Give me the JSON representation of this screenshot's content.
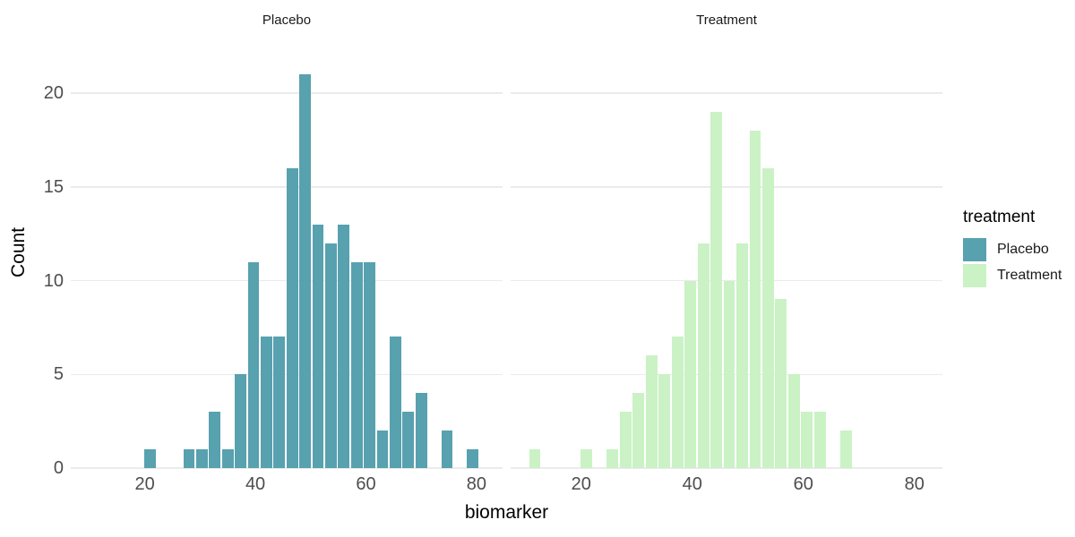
{
  "colors": {
    "background": "#ffffff",
    "grid": "#ebebeb",
    "tick_label": "#4d4d4d",
    "axis_title": "#000000",
    "strip_text": "#1a1a1a",
    "placebo_fill": "#58a1af",
    "treatment_fill": "#caf2c5"
  },
  "chart_data": {
    "type": "histogram",
    "faceted_by": "treatment",
    "binwidth": 2.3333,
    "xlabel": "biomarker",
    "ylabel": "Count",
    "x_ticks": [
      20,
      40,
      60,
      80
    ],
    "y_ticks": [
      0,
      5,
      10,
      15,
      20
    ],
    "xlim": [
      6.6,
      84.8
    ],
    "ylim": [
      0,
      22.9
    ],
    "grid": "horizontal-only",
    "legend": {
      "title": "treatment",
      "position": "right",
      "entries": [
        {
          "label": "Placebo",
          "color": "#58a1af"
        },
        {
          "label": "Treatment",
          "color": "#caf2c5"
        }
      ]
    },
    "facets": [
      {
        "label": "Placebo",
        "color": "#58a1af",
        "bins": [
          {
            "x": 19.83,
            "count": 1
          },
          {
            "x": 26.83,
            "count": 1
          },
          {
            "x": 29.17,
            "count": 1
          },
          {
            "x": 31.5,
            "count": 3
          },
          {
            "x": 33.83,
            "count": 1
          },
          {
            "x": 36.17,
            "count": 5
          },
          {
            "x": 38.5,
            "count": 11
          },
          {
            "x": 40.83,
            "count": 7
          },
          {
            "x": 43.17,
            "count": 7
          },
          {
            "x": 45.5,
            "count": 16
          },
          {
            "x": 47.83,
            "count": 21
          },
          {
            "x": 50.17,
            "count": 13
          },
          {
            "x": 52.5,
            "count": 12
          },
          {
            "x": 54.83,
            "count": 13
          },
          {
            "x": 57.17,
            "count": 11
          },
          {
            "x": 59.5,
            "count": 11
          },
          {
            "x": 61.83,
            "count": 2
          },
          {
            "x": 64.17,
            "count": 7
          },
          {
            "x": 66.5,
            "count": 3
          },
          {
            "x": 68.83,
            "count": 4
          },
          {
            "x": 73.5,
            "count": 2
          },
          {
            "x": 78.17,
            "count": 1
          }
        ]
      },
      {
        "label": "Treatment",
        "color": "#caf2c5",
        "bins": [
          {
            "x": 10.5,
            "count": 1
          },
          {
            "x": 19.83,
            "count": 1
          },
          {
            "x": 24.5,
            "count": 1
          },
          {
            "x": 26.83,
            "count": 3
          },
          {
            "x": 29.17,
            "count": 4
          },
          {
            "x": 31.5,
            "count": 6
          },
          {
            "x": 33.83,
            "count": 5
          },
          {
            "x": 36.17,
            "count": 7
          },
          {
            "x": 38.5,
            "count": 10
          },
          {
            "x": 40.83,
            "count": 12
          },
          {
            "x": 43.17,
            "count": 19
          },
          {
            "x": 45.5,
            "count": 10
          },
          {
            "x": 47.83,
            "count": 12
          },
          {
            "x": 50.17,
            "count": 18
          },
          {
            "x": 52.5,
            "count": 16
          },
          {
            "x": 54.83,
            "count": 9
          },
          {
            "x": 57.17,
            "count": 5
          },
          {
            "x": 59.5,
            "count": 3
          },
          {
            "x": 61.83,
            "count": 3
          },
          {
            "x": 66.5,
            "count": 2
          }
        ]
      }
    ]
  }
}
